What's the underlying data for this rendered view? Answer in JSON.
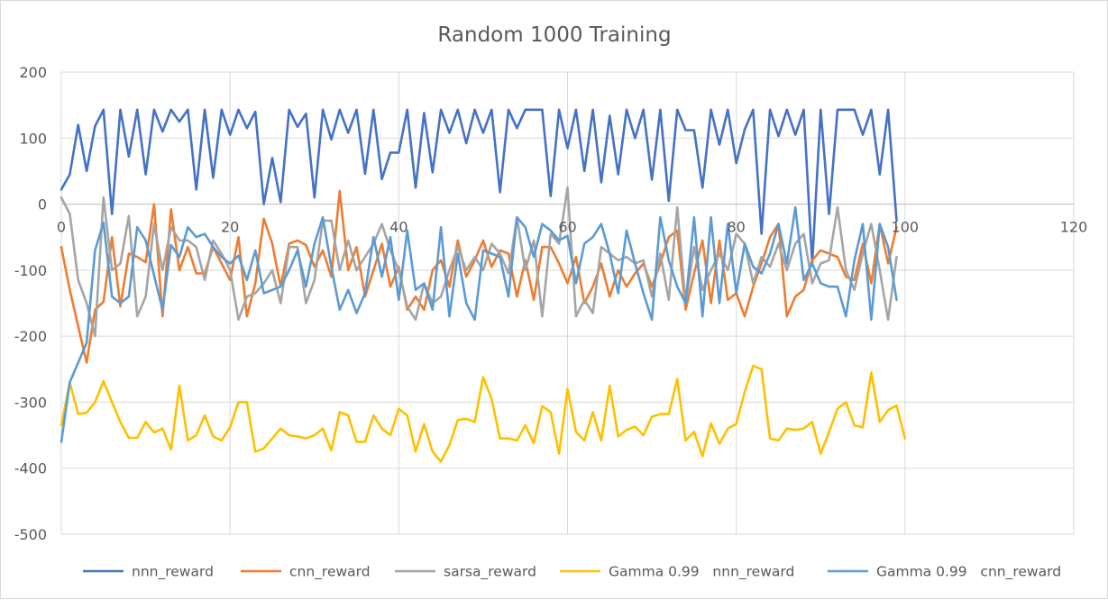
{
  "chart_data": {
    "type": "line",
    "title": "Random 1000 Training",
    "xlabel": "",
    "ylabel": "",
    "xlim": [
      0,
      120
    ],
    "ylim": [
      -500,
      200
    ],
    "x_ticks": [
      0,
      20,
      40,
      60,
      80,
      100,
      120
    ],
    "y_ticks": [
      -500,
      -400,
      -300,
      -200,
      -100,
      0,
      100,
      200
    ],
    "grid": "vertical and horizontal major",
    "legend_position": "bottom",
    "series": [
      {
        "name": "nnn_reward",
        "color": "#4472c4",
        "values": [
          22,
          45,
          120,
          50,
          118,
          143,
          -15,
          143,
          72,
          143,
          45,
          143,
          110,
          143,
          125,
          143,
          22,
          143,
          40,
          143,
          105,
          143,
          115,
          140,
          0,
          70,
          3,
          143,
          117,
          137,
          10,
          143,
          98,
          143,
          108,
          143,
          46,
          143,
          38,
          78,
          78,
          143,
          25,
          138,
          48,
          143,
          108,
          143,
          92,
          143,
          108,
          143,
          18,
          143,
          115,
          143,
          143,
          143,
          12,
          143,
          85,
          143,
          50,
          143,
          33,
          134,
          45,
          143,
          100,
          143,
          37,
          143,
          5,
          143,
          112,
          112,
          25,
          143,
          90,
          143,
          62,
          113,
          143,
          -45,
          143,
          103,
          143,
          105,
          143,
          -90,
          143,
          -15,
          143,
          143,
          143,
          105,
          143,
          45,
          143,
          -25
        ]
      },
      {
        "name": "cnn_reward",
        "color": "#ed7d31",
        "values": [
          -65,
          -130,
          -185,
          -240,
          -160,
          -148,
          -50,
          -155,
          -75,
          -80,
          -88,
          0,
          -170,
          -8,
          -100,
          -65,
          -105,
          -105,
          -65,
          -90,
          -115,
          -50,
          -170,
          -120,
          -22,
          -60,
          -125,
          -60,
          -55,
          -62,
          -95,
          -70,
          -110,
          20,
          -100,
          -65,
          -140,
          -100,
          -60,
          -125,
          -95,
          -160,
          -140,
          -160,
          -100,
          -85,
          -125,
          -55,
          -110,
          -85,
          -55,
          -95,
          -70,
          -75,
          -140,
          -85,
          -145,
          -65,
          -65,
          -90,
          -120,
          -80,
          -150,
          -125,
          -90,
          -140,
          -100,
          -125,
          -105,
          -90,
          -125,
          -90,
          -50,
          -40,
          -160,
          -105,
          -55,
          -150,
          -55,
          -145,
          -135,
          -170,
          -125,
          -90,
          -50,
          -30,
          -170,
          -140,
          -130,
          -85,
          -70,
          -75,
          -80,
          -110,
          -115,
          -60,
          -120,
          -30,
          -90,
          -35
        ]
      },
      {
        "name": "sarsa_reward",
        "color": "#a5a5a5",
        "values": [
          10,
          -15,
          -115,
          -150,
          -200,
          10,
          -100,
          -90,
          -18,
          -170,
          -140,
          -30,
          -100,
          -35,
          -55,
          -55,
          -65,
          -115,
          -55,
          -75,
          -100,
          -175,
          -140,
          -135,
          -120,
          -100,
          -150,
          -65,
          -65,
          -150,
          -115,
          -25,
          -25,
          -100,
          -55,
          -100,
          -80,
          -60,
          -30,
          -70,
          -100,
          -155,
          -175,
          -120,
          -150,
          -140,
          -100,
          -65,
          -100,
          -80,
          -100,
          -60,
          -75,
          -105,
          -20,
          -100,
          -55,
          -170,
          -45,
          -60,
          25,
          -170,
          -145,
          -165,
          -65,
          -75,
          -85,
          -80,
          -90,
          -85,
          -140,
          -75,
          -145,
          -5,
          -150,
          -65,
          -130,
          -100,
          -75,
          -100,
          -45,
          -60,
          -120,
          -80,
          -95,
          -60,
          -100,
          -60,
          -45,
          -120,
          -90,
          -85,
          -5,
          -100,
          -130,
          -75,
          -30,
          -100,
          -175,
          -80
        ]
      },
      {
        "name": "Gamma 0.99   nnn_reward",
        "color": "#ffc000",
        "values": [
          -335,
          -270,
          -318,
          -316,
          -300,
          -268,
          -300,
          -330,
          -354,
          -354,
          -330,
          -346,
          -340,
          -372,
          -275,
          -358,
          -350,
          -320,
          -352,
          -358,
          -338,
          -300,
          -300,
          -375,
          -370,
          -355,
          -340,
          -350,
          -352,
          -355,
          -350,
          -340,
          -373,
          -315,
          -320,
          -360,
          -360,
          -320,
          -340,
          -350,
          -310,
          -320,
          -375,
          -333,
          -375,
          -390,
          -365,
          -327,
          -325,
          -330,
          -262,
          -295,
          -355,
          -355,
          -358,
          -335,
          -362,
          -306,
          -315,
          -378,
          -280,
          -345,
          -358,
          -315,
          -358,
          -275,
          -352,
          -342,
          -337,
          -350,
          -322,
          -318,
          -318,
          -265,
          -358,
          -345,
          -382,
          -332,
          -363,
          -340,
          -333,
          -285,
          -245,
          -250,
          -355,
          -358,
          -340,
          -342,
          -340,
          -330,
          -378,
          -345,
          -310,
          -300,
          -335,
          -338,
          -255,
          -330,
          -312,
          -305,
          -355
        ]
      },
      {
        "name": "Gamma 0.99   cnn_reward",
        "color": "#5b9bd5",
        "values": [
          -360,
          -270,
          -240,
          -210,
          -70,
          -28,
          -140,
          -150,
          -140,
          -35,
          -55,
          -108,
          -160,
          -62,
          -80,
          -35,
          -50,
          -45,
          -65,
          -80,
          -90,
          -78,
          -115,
          -70,
          -135,
          -130,
          -125,
          -100,
          -70,
          -125,
          -60,
          -20,
          -95,
          -160,
          -130,
          -165,
          -135,
          -50,
          -110,
          -50,
          -145,
          -40,
          -130,
          -120,
          -160,
          -35,
          -170,
          -75,
          -150,
          -175,
          -70,
          -75,
          -80,
          -140,
          -20,
          -35,
          -80,
          -30,
          -40,
          -55,
          -48,
          -120,
          -60,
          -50,
          -30,
          -75,
          -135,
          -40,
          -90,
          -135,
          -175,
          -20,
          -85,
          -125,
          -150,
          -20,
          -170,
          -20,
          -150,
          -30,
          -135,
          -60,
          -95,
          -105,
          -75,
          -30,
          -90,
          -5,
          -115,
          -90,
          -120,
          -125,
          -125,
          -170,
          -85,
          -30,
          -175,
          -30,
          -65,
          -145
        ]
      }
    ]
  }
}
